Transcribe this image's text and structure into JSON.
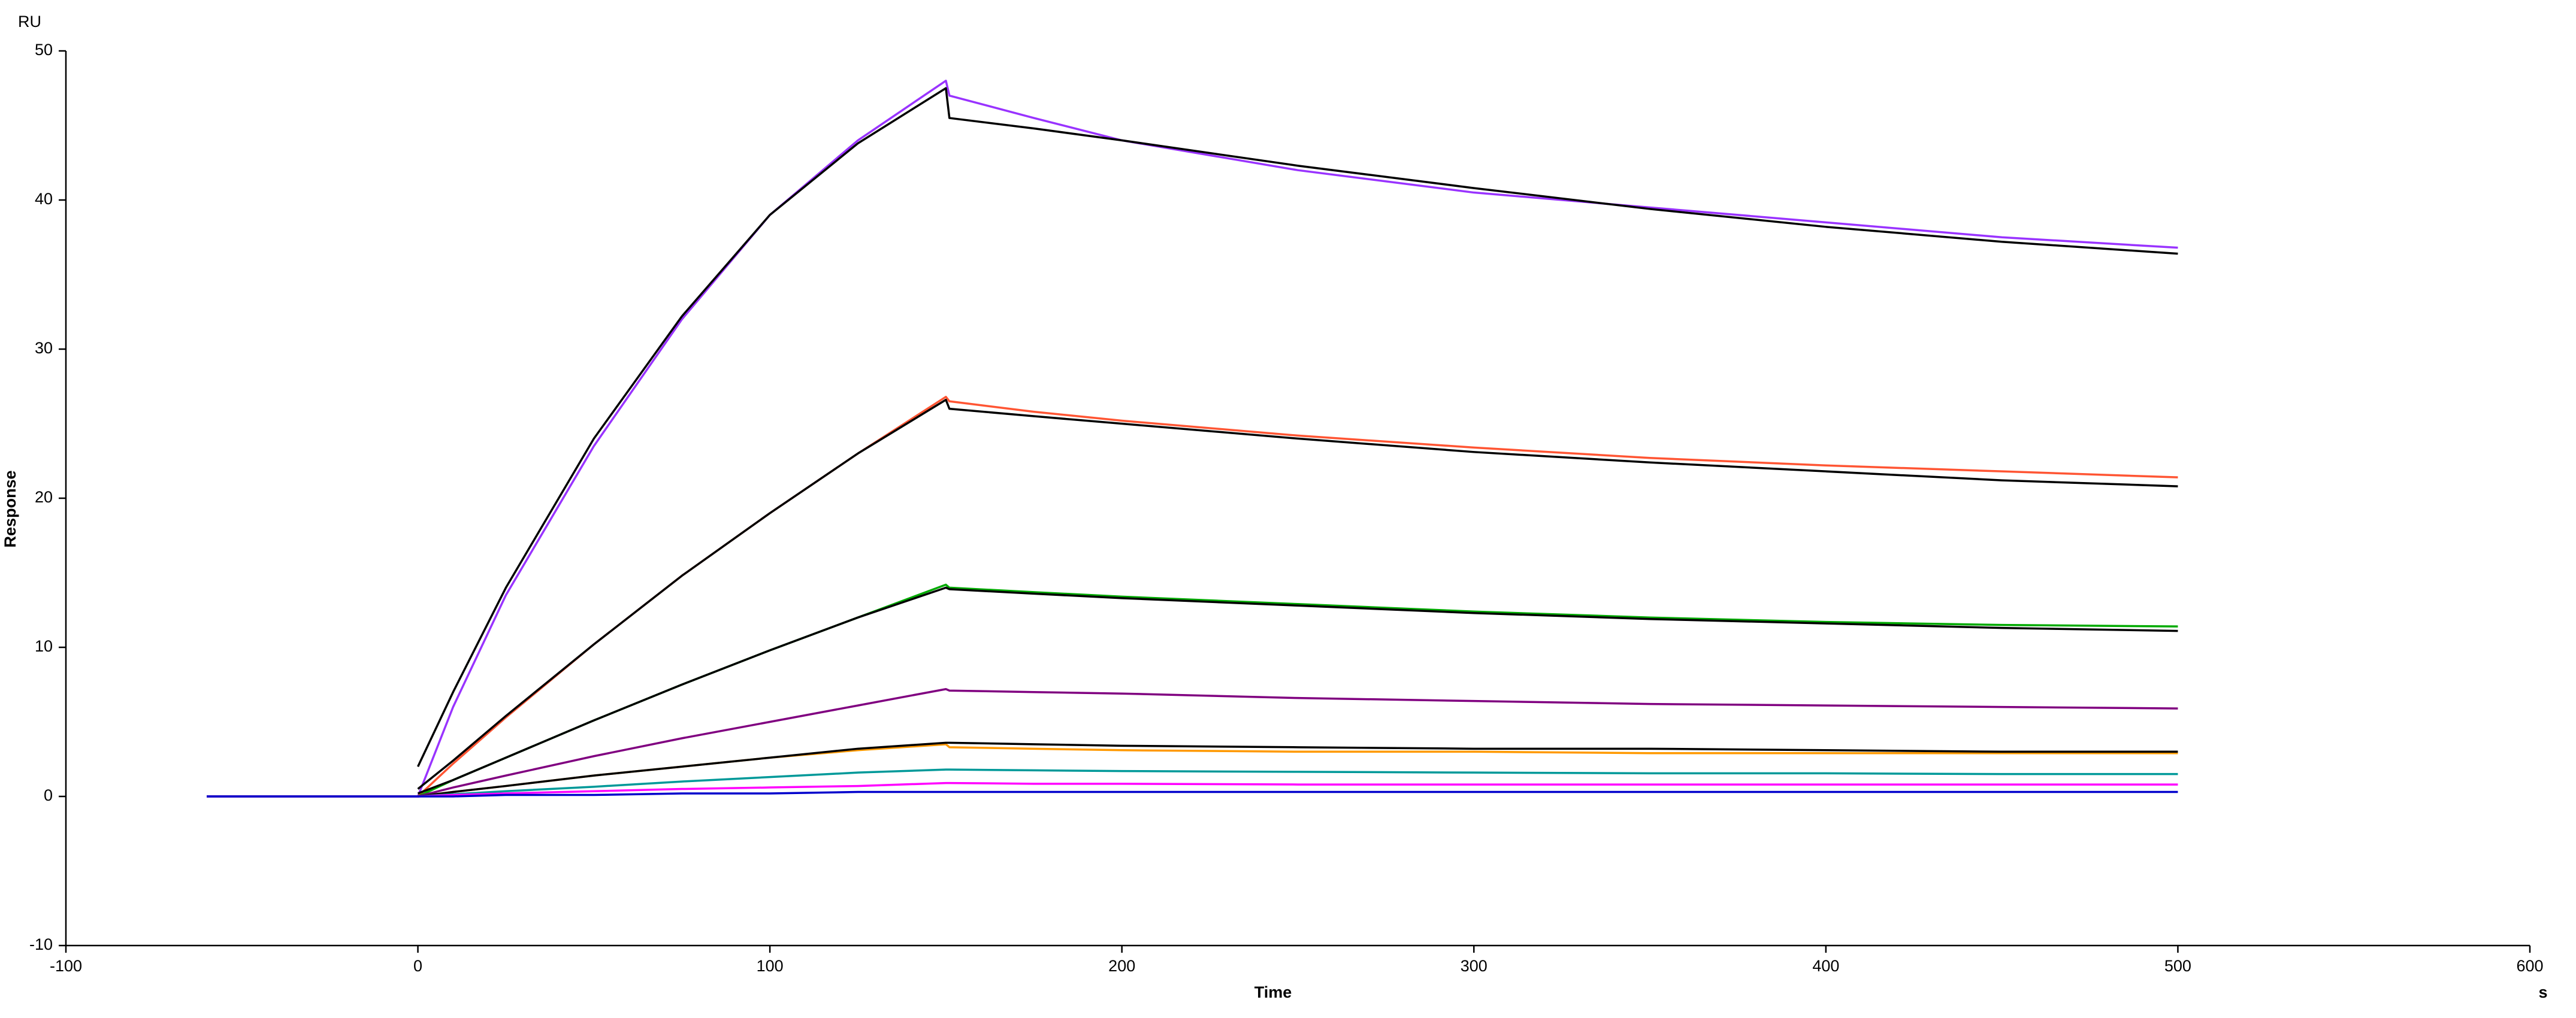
{
  "chart_data": {
    "type": "line",
    "y_axis_unit": "RU",
    "ylabel": "Response",
    "xlabel": "Time",
    "x_axis_unit": "s",
    "x": [
      -60,
      0,
      10,
      25,
      50,
      75,
      100,
      125,
      150,
      151,
      175,
      200,
      250,
      300,
      350,
      400,
      450,
      500
    ],
    "series": [
      {
        "color": "#9933ff",
        "values": [
          0,
          0,
          6,
          13.5,
          23.5,
          32,
          39,
          44,
          48,
          47,
          45.5,
          44,
          42,
          40.5,
          39.5,
          38.5,
          37.5,
          36.8
        ]
      },
      {
        "color": "#000000",
        "values": [
          null,
          2,
          7,
          14,
          24,
          32.2,
          39,
          43.8,
          47.5,
          45.5,
          44.8,
          44,
          42.3,
          40.8,
          39.4,
          38.2,
          37.2,
          36.4
        ]
      },
      {
        "color": "#ff5533",
        "values": [
          0,
          0,
          2.2,
          5.3,
          10.2,
          14.8,
          19,
          23,
          26.8,
          26.5,
          25.8,
          25.2,
          24.2,
          23.4,
          22.7,
          22.2,
          21.8,
          21.4
        ]
      },
      {
        "color": "#000000",
        "values": [
          null,
          0.5,
          2.4,
          5.4,
          10.2,
          14.8,
          19,
          23,
          26.6,
          26,
          25.5,
          25,
          24,
          23.1,
          22.4,
          21.8,
          21.2,
          20.8
        ]
      },
      {
        "color": "#00aa00",
        "values": [
          0,
          0,
          1.1,
          2.6,
          5.1,
          7.5,
          9.8,
          12,
          14.2,
          14,
          13.7,
          13.4,
          12.9,
          12.4,
          12,
          11.7,
          11.5,
          11.4
        ]
      },
      {
        "color": "#000000",
        "values": [
          null,
          0.2,
          1.1,
          2.6,
          5.1,
          7.5,
          9.8,
          12,
          14,
          13.9,
          13.6,
          13.3,
          12.8,
          12.3,
          11.9,
          11.6,
          11.3,
          11.1
        ]
      },
      {
        "color": "#800080",
        "values": [
          0,
          0,
          0.6,
          1.4,
          2.7,
          3.9,
          5,
          6.1,
          7.2,
          7.1,
          7,
          6.9,
          6.6,
          6.4,
          6.2,
          6.1,
          6,
          5.9
        ]
      },
      {
        "color": "#ff9900",
        "values": [
          0,
          0,
          0.3,
          0.7,
          1.4,
          2,
          2.6,
          3.1,
          3.5,
          3.3,
          3.2,
          3.1,
          3,
          3,
          2.9,
          2.9,
          2.9,
          2.9
        ]
      },
      {
        "color": "#000000",
        "values": [
          null,
          0,
          0.3,
          0.7,
          1.4,
          2,
          2.6,
          3.2,
          3.6,
          3.6,
          3.5,
          3.4,
          3.3,
          3.2,
          3.2,
          3.1,
          3,
          3
        ]
      },
      {
        "color": "#009999",
        "values": [
          0,
          0,
          0.15,
          0.35,
          0.65,
          1,
          1.3,
          1.6,
          1.8,
          1.8,
          1.75,
          1.7,
          1.65,
          1.6,
          1.55,
          1.55,
          1.5,
          1.5
        ]
      },
      {
        "color": "#ff00ff",
        "values": [
          0,
          0,
          0.1,
          0.2,
          0.35,
          0.5,
          0.6,
          0.7,
          0.9,
          0.9,
          0.85,
          0.85,
          0.8,
          0.8,
          0.8,
          0.8,
          0.8,
          0.8
        ]
      },
      {
        "color": "#0000cc",
        "values": [
          0,
          0,
          0,
          0.1,
          0.1,
          0.2,
          0.2,
          0.3,
          0.3,
          0.3,
          0.3,
          0.3,
          0.3,
          0.3,
          0.3,
          0.3,
          0.3,
          0.3
        ]
      }
    ],
    "xlim": [
      -100,
      600
    ],
    "xticks": [
      -100,
      0,
      100,
      200,
      300,
      400,
      500,
      600
    ],
    "ylim": [
      -10,
      50
    ],
    "yticks": [
      -10,
      0,
      10,
      20,
      30,
      40,
      50
    ]
  }
}
